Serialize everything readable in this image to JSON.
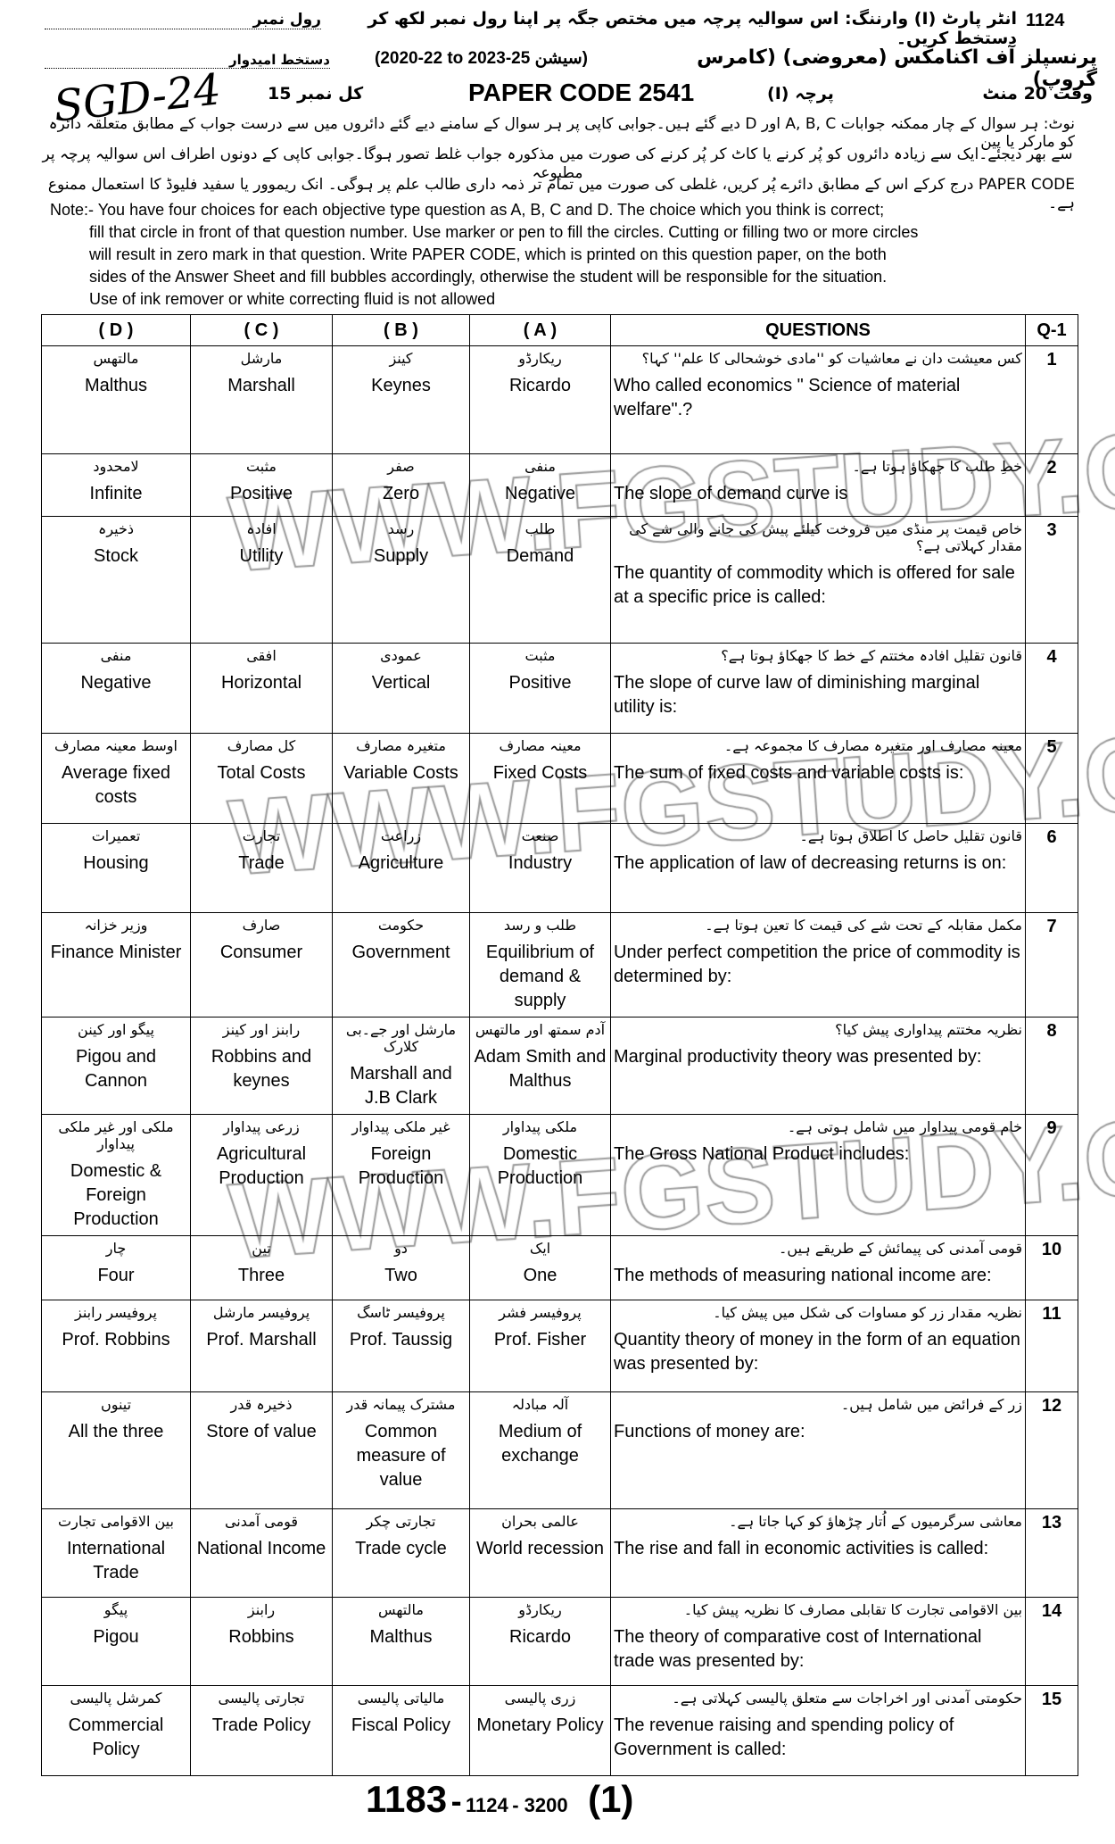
{
  "header": {
    "line1_code": "1124",
    "line1_ur": "انٹر پارٹ (I) وارننگ: اس سوالیہ پرچہ میں مختص جگہ پر اپنا رول نمبر لکھ کر دستخط کریں۔",
    "roll_no_label": "رول نمبر",
    "subject_ur": "پرنسپلز آف اکنامکس (معروضی) (کامرس گروپ)",
    "session": "(2020-22 to 2023-25 سیشن)",
    "signature_label": "دستخط امیدوار",
    "handwritten": "SGD-24",
    "total_marks": "کل نمبر 15",
    "paper_code": "PAPER CODE  2541",
    "paper_ur": "پرچہ (I)",
    "time_ur": "وقت 20 منٹ"
  },
  "note_ur": [
    "نوٹ: ہر سوال کے چار ممکنہ جوابات A, B, C اور D دیے گئے ہیں۔جوابی کاپی پر ہر سوال کے سامنے دیے گئے دائروں میں سے درست جواب کے مطابق متعلقہ دائرہ کو مارکر یا پین",
    "سے بھر دیجئے۔ایک سے زیادہ دائروں کو پُر کرنے یا کاٹ کر پُر کرنے کی صورت میں مذکورہ جواب غلط تصور ہوگا۔جوابی کاپی کے دونوں اطراف اس سوالیہ پرچہ پر مطبوعہ",
    "PAPER CODE درج کرکے اس کے مطابق دائرے پُر کریں، غلطی کی صورت میں تمام تر ذمہ داری طالب علم پر ہوگی۔ انک ریموور یا سفید فلیوڈ کا استعمال ممنوع ہے۔"
  ],
  "note_en": [
    "Note:- You have four choices for each objective type question as A, B, C and D.  The choice which you think is correct;",
    "fill that circle in front of that question number.  Use marker or pen to fill the circles. Cutting or filling two or more circles",
    "will result in zero mark in that question.   Write PAPER CODE, which is printed on this question paper, on the   both",
    "sides of  the  Answer  Sheet and fill bubbles accordingly,  otherwise  the student  will be responsible for  the situation.",
    "Use  of ink remover or white correcting  fluid is not allowed"
  ],
  "columns": [
    "( D )",
    "( C )",
    "( B )",
    "( A )",
    "QUESTIONS",
    "Q-1"
  ],
  "rows": [
    {
      "n": "1",
      "qu": "کس معیشت دان نے معاشیات کو ''مادی خوشحالی کا علم'' کہا؟",
      "qe": "Who called economics \" Science of material welfare\".?",
      "a": [
        "ریکارڈو",
        "Ricardo"
      ],
      "b": [
        "کینز",
        "Keynes"
      ],
      "c": [
        "مارشل",
        "Marshall"
      ],
      "d": [
        "مالتھس",
        "Malthus"
      ]
    },
    {
      "n": "2",
      "qu": "خطِ طلب کا جھکاؤ ہوتا ہے۔",
      "qe": "The slope of demand curve is",
      "a": [
        "منفی",
        "Negative"
      ],
      "b": [
        "صفر",
        "Zero"
      ],
      "c": [
        "مثبت",
        "Positive"
      ],
      "d": [
        "لامحدود",
        "Infinite"
      ]
    },
    {
      "n": "3",
      "qu": "خاص قیمت پر منڈی میں فروخت کیلئے پیش کی جانے والی شے کی مقدار کہلاتی ہے؟",
      "qe": "The quantity of commodity which is offered for sale at a specific price is called:",
      "a": [
        "طلب",
        "Demand"
      ],
      "b": [
        "رسد",
        "Supply"
      ],
      "c": [
        "افادہ",
        "Utility"
      ],
      "d": [
        "ذخیرہ",
        "Stock"
      ]
    },
    {
      "n": "4",
      "qu": "قانون تقلیل افادہ مختتم کے خط کا جھکاؤ ہوتا ہے؟",
      "qe": "The slope of curve law of diminishing marginal utility is:",
      "a": [
        "مثبت",
        "Positive"
      ],
      "b": [
        "عمودی",
        "Vertical"
      ],
      "c": [
        "افقی",
        "Horizontal"
      ],
      "d": [
        "منفی",
        "Negative"
      ]
    },
    {
      "n": "5",
      "qu": "معینہ مصارف اور متغیرہ مصارف کا مجموعہ ہے۔",
      "qe": "The sum of fixed costs and variable costs is:",
      "a": [
        "معینہ مصارف",
        "Fixed Costs"
      ],
      "b": [
        "متغیرہ مصارف",
        "Variable Costs"
      ],
      "c": [
        "کل مصارف",
        "Total Costs"
      ],
      "d": [
        "اوسط معینہ مصارف",
        "Average fixed costs"
      ]
    },
    {
      "n": "6",
      "qu": "قانون تقلیل حاصل کا اطلاق ہوتا ہے۔",
      "qe": "The application of law of decreasing returns is on:",
      "a": [
        "صنعت",
        "Industry"
      ],
      "b": [
        "زراعت",
        "Agriculture"
      ],
      "c": [
        "تجارت",
        "Trade"
      ],
      "d": [
        "تعمیرات",
        "Housing"
      ]
    },
    {
      "n": "7",
      "qu": "مکمل مقابلہ کے تحت شے کی قیمت کا تعین ہوتا ہے۔",
      "qe": "Under perfect competition the price of commodity is determined by:",
      "a": [
        "طلب و رسد",
        "Equilibrium of demand & supply"
      ],
      "b": [
        "حکومت",
        "Government"
      ],
      "c": [
        "صارف",
        "Consumer"
      ],
      "d": [
        "وزیر خزانہ",
        "Finance Minister"
      ]
    },
    {
      "n": "8",
      "qu": "نظریہ مختتم پیداواری پیش کیا؟",
      "qe": "Marginal productivity theory was presented by:",
      "a": [
        "آدم سمتھ اور مالتھس",
        "Adam Smith and Malthus"
      ],
      "b": [
        "مارشل اور جے۔بی کلارک",
        "Marshall and J.B Clark"
      ],
      "c": [
        "رابنز اور کینز",
        "Robbins and keynes"
      ],
      "d": [
        "پیگو اور کینن",
        "Pigou and Cannon"
      ]
    },
    {
      "n": "9",
      "qu": "خام قومی پیداوار میں شامل ہوتی ہے۔",
      "qe": "The Gross National Product includes:",
      "a": [
        "ملکی پیداوار",
        "Domestic Production"
      ],
      "b": [
        "غیر ملکی پیداوار",
        "Foreign Production"
      ],
      "c": [
        "زرعی پیداوار",
        "Agricultural Production"
      ],
      "d": [
        "ملکی اور غیر ملکی پیداوار",
        "Domestic & Foreign Production"
      ]
    },
    {
      "n": "10",
      "qu": "قومی آمدنی کی پیمائش کے طریقے ہیں۔",
      "qe": "The methods of measuring national income are:",
      "a": [
        "ایک",
        "One"
      ],
      "b": [
        "دو",
        "Two"
      ],
      "c": [
        "تین",
        "Three"
      ],
      "d": [
        "چار",
        "Four"
      ]
    },
    {
      "n": "11",
      "qu": "نظریہ مقدار زر کو مساوات کی شکل میں پیش کیا۔",
      "qe": "Quantity theory of money in the form of an equation was presented by:",
      "a": [
        "پروفیسر فشر",
        "Prof. Fisher"
      ],
      "b": [
        "پروفیسر ٹاسگ",
        "Prof. Taussig"
      ],
      "c": [
        "پروفیسر مارشل",
        "Prof. Marshall"
      ],
      "d": [
        "پروفیسر رابنز",
        "Prof. Robbins"
      ]
    },
    {
      "n": "12",
      "qu": "زر کے فرائض میں شامل ہیں۔",
      "qe": "Functions of money are:",
      "a": [
        "آلہ مبادلہ",
        "Medium of exchange"
      ],
      "b": [
        "مشترک پیمانہ قدر",
        "Common measure of value"
      ],
      "c": [
        "ذخیرہ قدر",
        "Store of value"
      ],
      "d": [
        "تینوں",
        "All the three"
      ]
    },
    {
      "n": "13",
      "qu": "معاشی سرگرمیوں کے اُتار چڑھاؤ کو کہا جاتا ہے۔",
      "qe": "The rise and fall in economic activities is called:",
      "a": [
        "عالمی بحران",
        "World recession"
      ],
      "b": [
        "تجارتی چکر",
        "Trade cycle"
      ],
      "c": [
        "قومی آمدنی",
        "National Income"
      ],
      "d": [
        "بین الاقوامی تجارت",
        "International Trade"
      ]
    },
    {
      "n": "14",
      "qu": "بین الاقوامی تجارت کا تقابلی مصارف کا نظریہ پیش کیا۔",
      "qe": "The theory of comparative cost of International trade was presented by:",
      "a": [
        "ریکارڈو",
        "Ricardo"
      ],
      "b": [
        "مالتھس",
        "Malthus"
      ],
      "c": [
        "رابنز",
        "Robbins"
      ],
      "d": [
        "پیگو",
        "Pigou"
      ]
    },
    {
      "n": "15",
      "qu": "حکومتی آمدنی اور اخراجات سے متعلق پالیسی کہلاتی ہے۔",
      "qe": "The revenue raising and spending policy of Government is called:",
      "a": [
        "زری پالیسی",
        "Monetary Policy"
      ],
      "b": [
        "مالیاتی پالیسی",
        "Fiscal Policy"
      ],
      "c": [
        "تجارتی پالیسی",
        "Trade Policy"
      ],
      "d": [
        "کمرشل پالیسی",
        "Commercial Policy"
      ]
    }
  ],
  "watermark": "WWW.FGSTUDY.COM",
  "footer": {
    "main": "1183",
    "dash": "-",
    "code1": "1124",
    "code2": "3200",
    "part": "(1)"
  }
}
